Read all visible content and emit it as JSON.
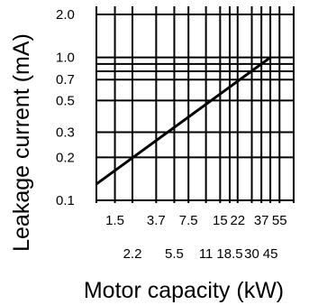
{
  "chart_data": {
    "type": "line",
    "title": "",
    "xlabel": "Motor capacity (kW)",
    "ylabel": "Leakage current (mA)",
    "xscale": "log",
    "yscale": "log",
    "grid": true,
    "xlim": [
      1.0,
      75
    ],
    "ylim": [
      0.1,
      2.0
    ],
    "x_gridlines": [
      1.0,
      1.5,
      2.2,
      3.7,
      5.5,
      7.5,
      11,
      15,
      18.5,
      22,
      30,
      37,
      45,
      55,
      75
    ],
    "y_gridlines": [
      0.1,
      0.2,
      0.3,
      0.5,
      0.7,
      0.8,
      0.9,
      1.0,
      2.0
    ],
    "x_ticks_row1": [
      "1.5",
      "3.7",
      "7.5",
      "15",
      "22",
      "37",
      "55"
    ],
    "x_ticks_row2": [
      "2.2",
      "5.5",
      "11",
      "18.5",
      "30",
      "45"
    ],
    "y_ticks": [
      "2.0",
      "1.0",
      "0.7",
      "0.5",
      "0.3",
      "0.2",
      "0.1"
    ],
    "series": [
      {
        "x": [
          1.0,
          45
        ],
        "y": [
          0.13,
          1.0
        ]
      }
    ],
    "colors": {
      "line": "#000000",
      "grid": "#000000",
      "background": "#ffffff"
    }
  }
}
